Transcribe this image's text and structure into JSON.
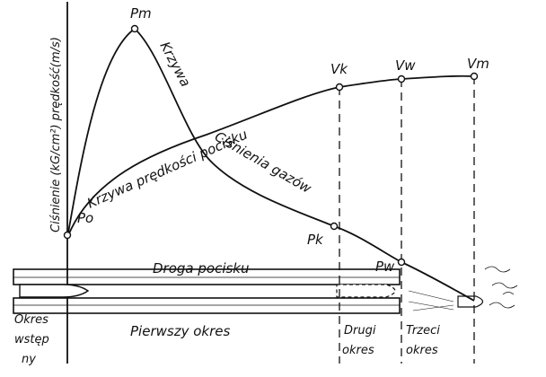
{
  "axis_label": "Ciśnienie (kG/cm²) prędkość(m/s)",
  "points": {
    "pm": "Pm",
    "po": "Po",
    "pk": "Pk",
    "pw": "Pw",
    "vk": "Vk",
    "vw": "Vw",
    "vm": "Vm"
  },
  "curves": {
    "pressure_top": "Krzywa",
    "pressure_bottom": "Ciśnienia gazów",
    "velocity": "Krzywa prędkości pocisku"
  },
  "path_label": "Droga pocisku",
  "periods": {
    "initial": [
      "Okres",
      "wstęp",
      "ny"
    ],
    "first": "Pierwszy okres",
    "second": [
      "Drugi",
      "okres"
    ],
    "third": [
      "Trzeci",
      "okres"
    ]
  }
}
